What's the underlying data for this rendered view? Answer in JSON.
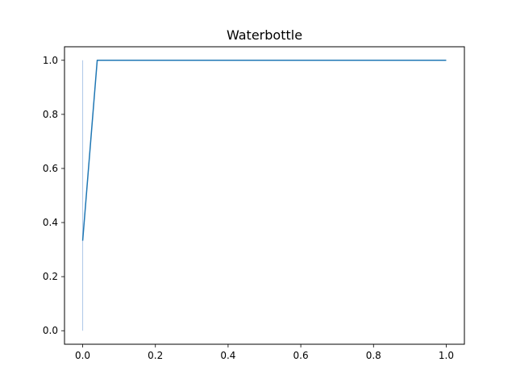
{
  "chart_data": {
    "type": "line",
    "title": "Waterbottle",
    "xlabel": "",
    "ylabel": "",
    "xlim": [
      -0.05,
      1.05
    ],
    "ylim": [
      -0.05,
      1.05
    ],
    "grid": false,
    "x_ticks": [
      "0.0",
      "0.2",
      "0.4",
      "0.6",
      "0.8",
      "1.0"
    ],
    "y_ticks": [
      "0.0",
      "0.2",
      "0.4",
      "0.6",
      "0.8",
      "1.0"
    ],
    "series": [
      {
        "x": [
          0.0,
          0.0
        ],
        "y": [
          0.0,
          1.0
        ],
        "color": "#aec7e8"
      },
      {
        "x": [
          0.0,
          0.04,
          1.0
        ],
        "y": [
          0.333,
          1.0,
          1.0
        ],
        "color": "#1f77b4"
      }
    ]
  }
}
